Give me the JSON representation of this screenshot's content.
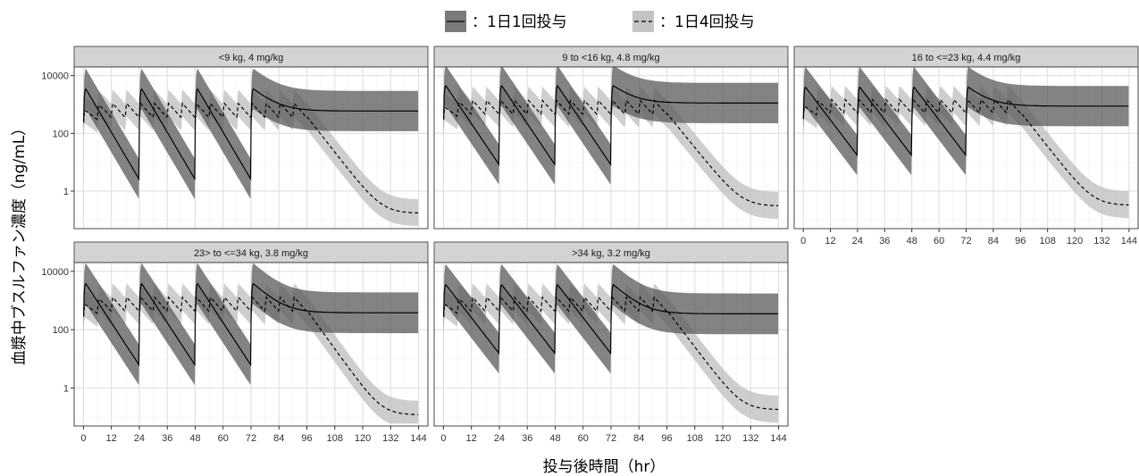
{
  "chart_data": {
    "type": "line",
    "layout": "facet-grid",
    "xlabel": "投与後時間（hr）",
    "ylabel": "血漿中ブスルファン濃度（ng/mL）",
    "x_ticks": [
      0,
      12,
      24,
      36,
      48,
      60,
      72,
      84,
      96,
      108,
      120,
      132,
      144
    ],
    "xlim": [
      -4,
      148
    ],
    "y_scale": "log10",
    "y_ticks": [
      1,
      100,
      10000
    ],
    "y_tick_labels": [
      "1",
      "100",
      "10000"
    ],
    "ylim": [
      0.05,
      20000
    ],
    "grid": true,
    "legend_position": "top",
    "legend": [
      {
        "label": "：1日1回投与",
        "line": "solid",
        "band_color": "#7a7a7a"
      },
      {
        "label": "：1日4回投与",
        "line": "dashed",
        "band_color": "#c4c4c4"
      }
    ],
    "colors": {
      "once_band": "#595959",
      "four_band": "#bdbdbd",
      "line": "#000000",
      "strip": "#d3d3d3"
    },
    "facets": [
      {
        "label": "<9 kg, 4 mg/kg",
        "once_daily": {
          "dose_times": [
            0,
            24,
            48,
            72
          ],
          "cmax": 3500,
          "trough": 2.5,
          "final": 0.17,
          "band_low_factor": 0.2,
          "band_high_factor": 5
        },
        "four_times_daily": {
          "dose_times": [
            0,
            6,
            12,
            18,
            24,
            30,
            36,
            42,
            48,
            54,
            60,
            66,
            72,
            78,
            84,
            90
          ],
          "peak": 1100,
          "trough": 350,
          "final": 0.17,
          "band_low_factor": 0.35,
          "band_high_factor": 3
        }
      },
      {
        "label": "9 to <16 kg, 4.8 mg/kg",
        "once_daily": {
          "dose_times": [
            0,
            24,
            48,
            72
          ],
          "cmax": 4500,
          "trough": 8,
          "final": 0.25,
          "band_low_factor": 0.2,
          "band_high_factor": 5
        },
        "four_times_daily": {
          "dose_times": [
            0,
            6,
            12,
            18,
            24,
            30,
            36,
            42,
            48,
            54,
            60,
            66,
            72,
            78,
            84,
            90
          ],
          "peak": 1400,
          "trough": 450,
          "final": 0.3,
          "band_low_factor": 0.35,
          "band_high_factor": 3
        }
      },
      {
        "label": "16 to <=23 kg, 4.4 mg/kg",
        "once_daily": {
          "dose_times": [
            0,
            24,
            48,
            72
          ],
          "cmax": 4000,
          "trough": 17,
          "final": 0.22,
          "band_low_factor": 0.2,
          "band_high_factor": 5
        },
        "four_times_daily": {
          "dose_times": [
            0,
            6,
            12,
            18,
            24,
            30,
            36,
            42,
            48,
            54,
            60,
            66,
            72,
            78,
            84,
            90
          ],
          "peak": 1500,
          "trough": 500,
          "final": 0.32,
          "band_low_factor": 0.35,
          "band_high_factor": 3
        }
      },
      {
        "label": "23> to <=34 kg, 3.8 mg/kg",
        "once_daily": {
          "dose_times": [
            0,
            24,
            48,
            72
          ],
          "cmax": 3800,
          "trough": 6,
          "final": 0.1,
          "band_low_factor": 0.2,
          "band_high_factor": 5
        },
        "four_times_daily": {
          "dose_times": [
            0,
            6,
            12,
            18,
            24,
            30,
            36,
            42,
            48,
            54,
            60,
            66,
            72,
            78,
            84,
            90
          ],
          "peak": 1300,
          "trough": 420,
          "final": 0.12,
          "band_low_factor": 0.35,
          "band_high_factor": 3
        }
      },
      {
        "label": ">34 kg, 3.2 mg/kg",
        "once_daily": {
          "dose_times": [
            0,
            24,
            48,
            72
          ],
          "cmax": 3500,
          "trough": 15,
          "final": 0.1,
          "band_low_factor": 0.2,
          "band_high_factor": 5
        },
        "four_times_daily": {
          "dose_times": [
            0,
            6,
            12,
            18,
            24,
            30,
            36,
            42,
            48,
            54,
            60,
            66,
            72,
            78,
            84,
            90
          ],
          "peak": 1300,
          "trough": 420,
          "final": 0.18,
          "band_low_factor": 0.35,
          "band_high_factor": 3
        }
      }
    ]
  }
}
